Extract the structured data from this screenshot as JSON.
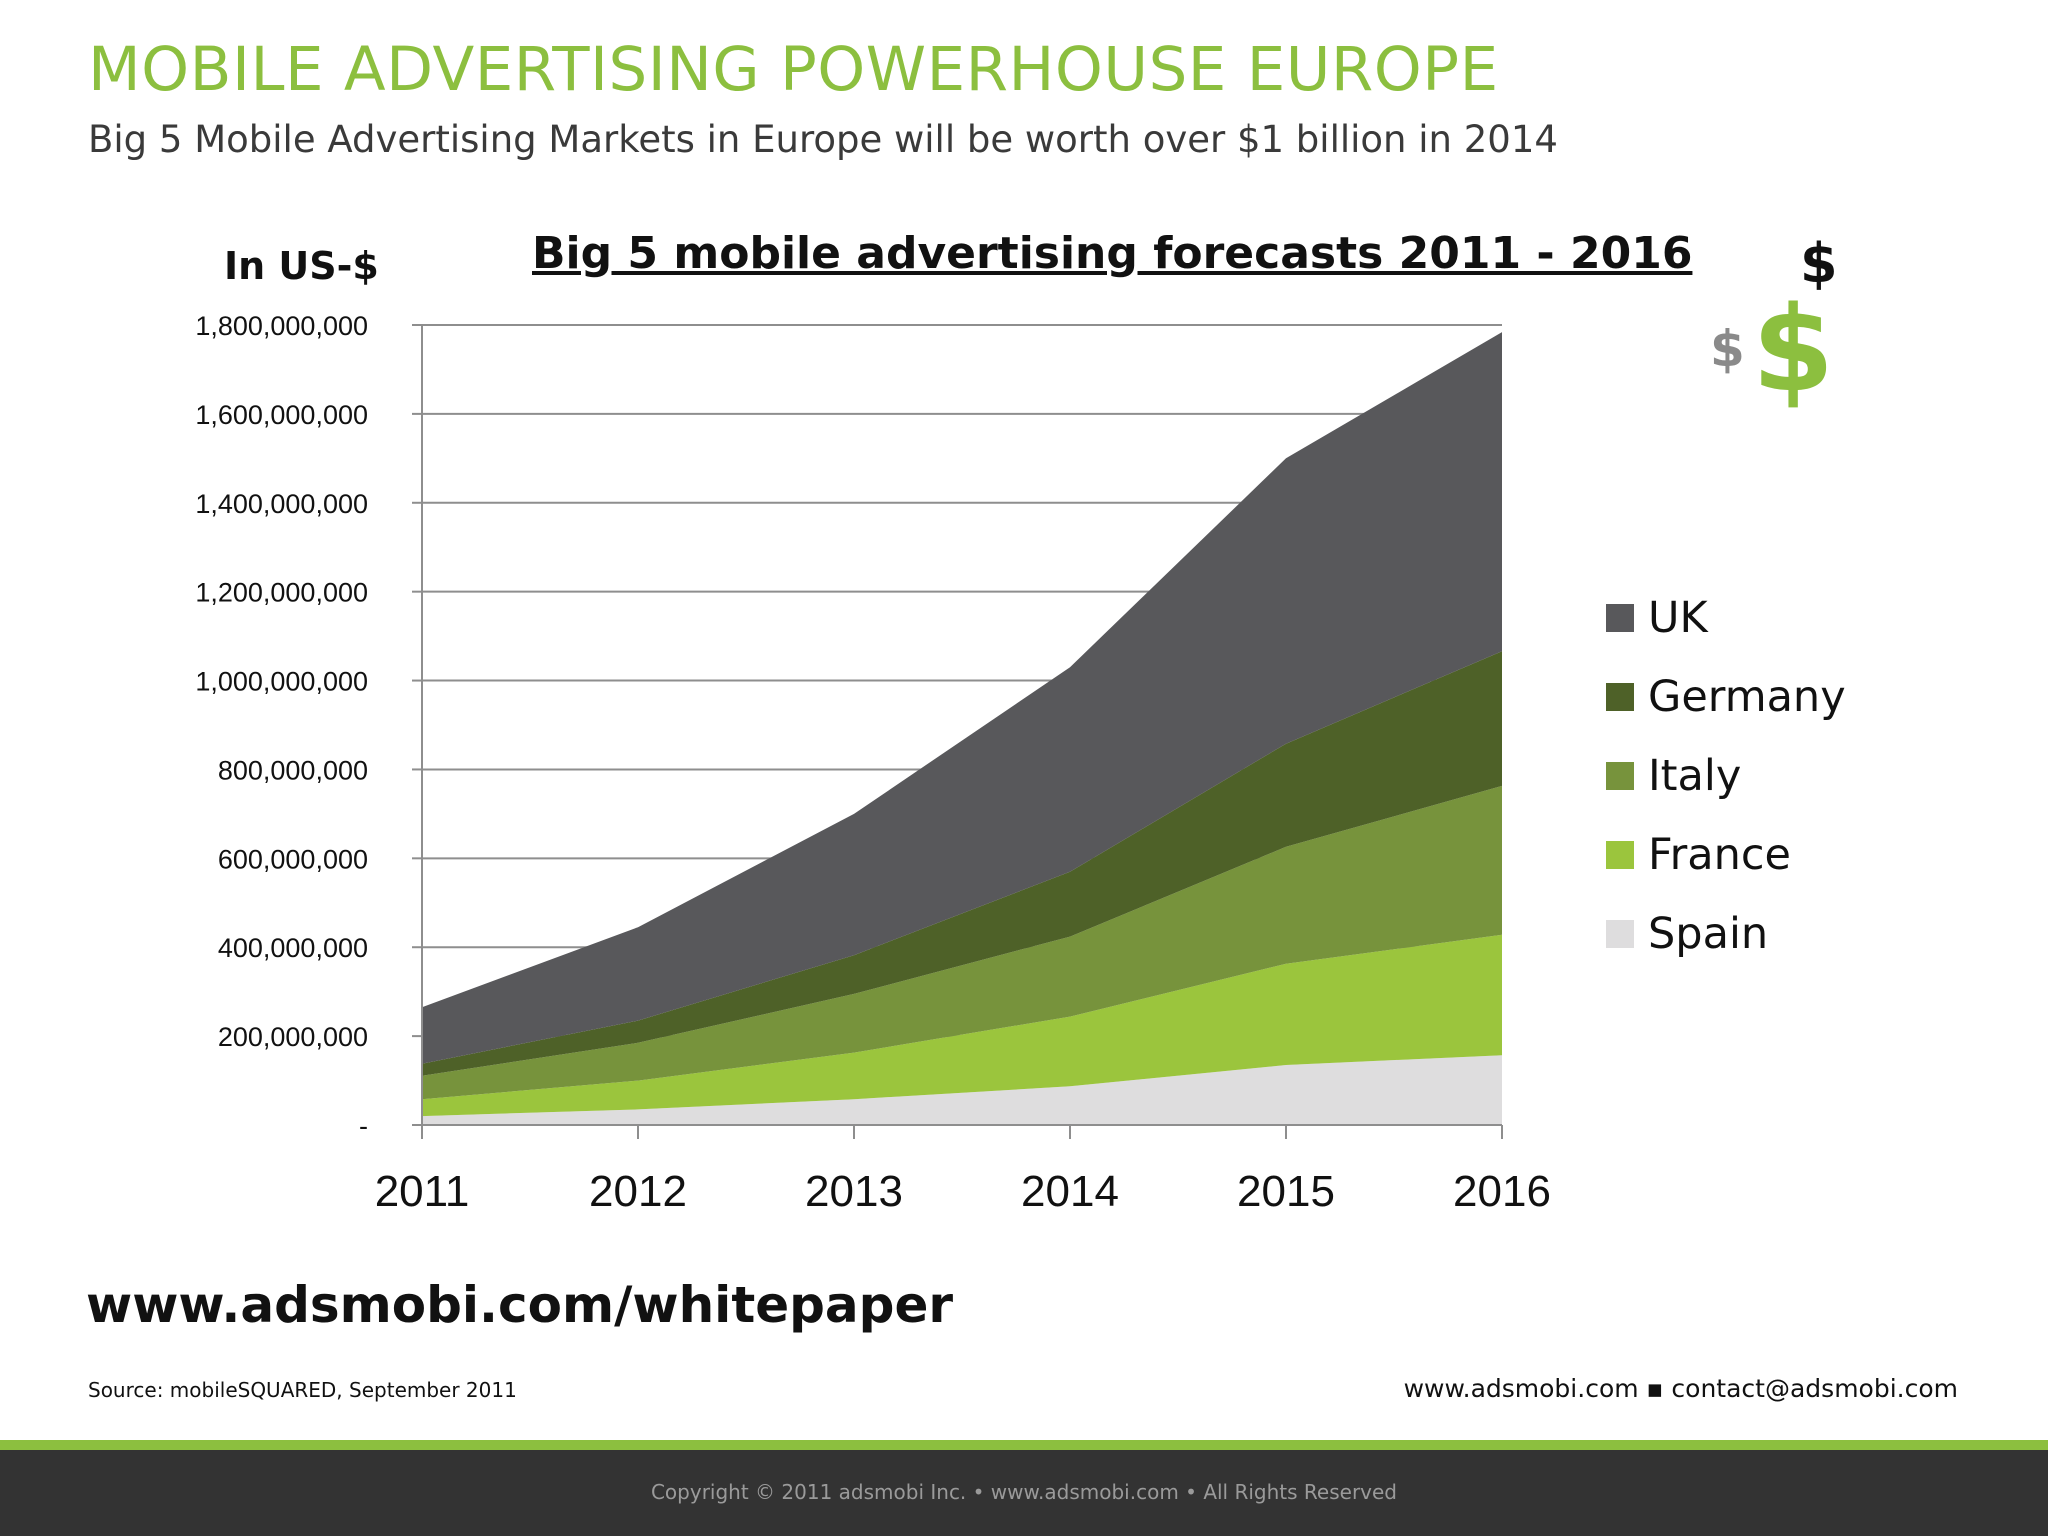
{
  "slide": {
    "title": "MOBILE ADVERTISING POWERHOUSE EUROPE",
    "subtitle": "Big 5 Mobile Advertising Markets in Europe will be worth over $1 billion in 2014",
    "whitepaper_link": "www.adsmobi.com/whitepaper",
    "source": "Source: mobileSQUARED, September 2011",
    "contact": "www.adsmobi.com ▪ contact@adsmobi.com",
    "copyright": "Copyright © 2011 adsmobi Inc. • www.adsmobi.com • All Rights Reserved",
    "dollar_signs": [
      "$",
      "$",
      "$"
    ]
  },
  "colors": {
    "accent_green": "#8cbf3f",
    "uk": "#58585b",
    "germany": "#4e6128",
    "italy": "#77933c",
    "france": "#9bc53d",
    "spain": "#deddde"
  },
  "chart_data": {
    "type": "area",
    "stacked": true,
    "title": "Big 5 mobile advertising forecasts 2011 - 2016",
    "ylabel": "In US-$",
    "xlabel": "",
    "categories": [
      "2011",
      "2012",
      "2013",
      "2014",
      "2015",
      "2016"
    ],
    "ylim": [
      0,
      1800000000
    ],
    "yticks": [
      0,
      200000000,
      400000000,
      600000000,
      800000000,
      1000000000,
      1200000000,
      1400000000,
      1600000000,
      1800000000
    ],
    "ytick_labels": [
      "-",
      "200,000,000",
      "400,000,000",
      "600,000,000",
      "800,000,000",
      "1,000,000,000",
      "1,200,000,000",
      "1,400,000,000",
      "1,600,000,000",
      "1,800,000,000"
    ],
    "grid": true,
    "legend_position": "right",
    "series": [
      {
        "name": "Spain",
        "color": "#deddde",
        "values": [
          20000000,
          35000000,
          58000000,
          87000000,
          135000000,
          157000000
        ]
      },
      {
        "name": "France",
        "color": "#9bc53d",
        "values": [
          38000000,
          65000000,
          105000000,
          157000000,
          228000000,
          271000000
        ]
      },
      {
        "name": "Italy",
        "color": "#77933c",
        "values": [
          53000000,
          85000000,
          132000000,
          180000000,
          263000000,
          335000000
        ]
      },
      {
        "name": "Germany",
        "color": "#4e6128",
        "values": [
          27000000,
          50000000,
          87000000,
          146000000,
          232000000,
          303000000
        ]
      },
      {
        "name": "UK",
        "color": "#58585b",
        "values": [
          127000000,
          210000000,
          318000000,
          460000000,
          642000000,
          718000000
        ]
      }
    ],
    "legend_order": [
      "UK",
      "Germany",
      "Italy",
      "France",
      "Spain"
    ]
  }
}
